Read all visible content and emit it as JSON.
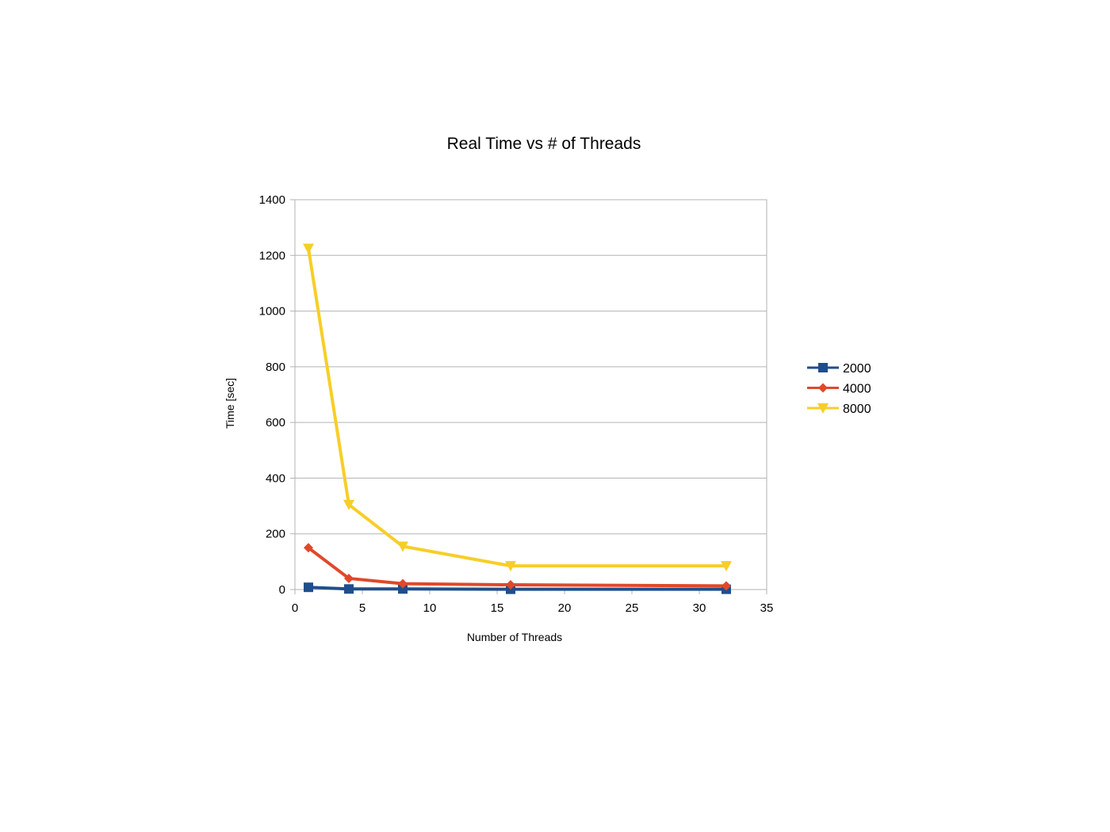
{
  "chart_data": {
    "type": "line",
    "title": "Real Time vs # of Threads",
    "xlabel": "Number of Threads",
    "ylabel": "Time [sec]",
    "xlim": [
      0,
      35
    ],
    "ylim": [
      0,
      1400
    ],
    "xticks": [
      0,
      5,
      10,
      15,
      20,
      25,
      30,
      35
    ],
    "yticks": [
      0,
      200,
      400,
      600,
      800,
      1000,
      1200,
      1400
    ],
    "grid": "horizontal",
    "legend_position": "right",
    "x": [
      1,
      4,
      8,
      16,
      32
    ],
    "series": [
      {
        "name": "2000",
        "color": "#1f4e8c",
        "marker": "square",
        "values": [
          8,
          2,
          2,
          1,
          1
        ]
      },
      {
        "name": "4000",
        "color": "#e0482a",
        "marker": "diamond",
        "values": [
          150,
          40,
          21,
          17,
          13
        ]
      },
      {
        "name": "8000",
        "color": "#f7ce27",
        "marker": "triangle-down",
        "values": [
          1225,
          305,
          155,
          85,
          85
        ]
      }
    ]
  }
}
